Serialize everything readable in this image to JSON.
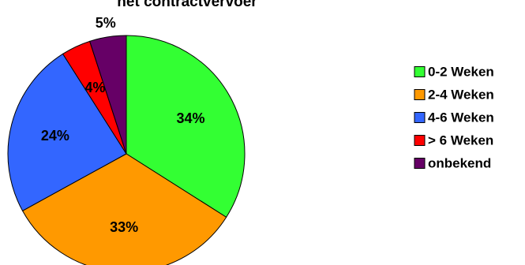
{
  "chart_data": {
    "type": "pie",
    "title": "het contractvervoer",
    "categories": [
      "0-2 Weken",
      "2-4 Weken",
      "4-6 Weken",
      "> 6 Weken",
      "onbekend"
    ],
    "values": [
      34,
      33,
      24,
      4,
      5
    ],
    "value_labels": [
      "34%",
      "33%",
      "24%",
      "4%",
      "5%"
    ],
    "colors": [
      "#33ff33",
      "#ff9900",
      "#3366ff",
      "#ff0000",
      "#660066"
    ],
    "legend_position": "right",
    "start": "12 o'clock",
    "direction": "clockwise"
  }
}
